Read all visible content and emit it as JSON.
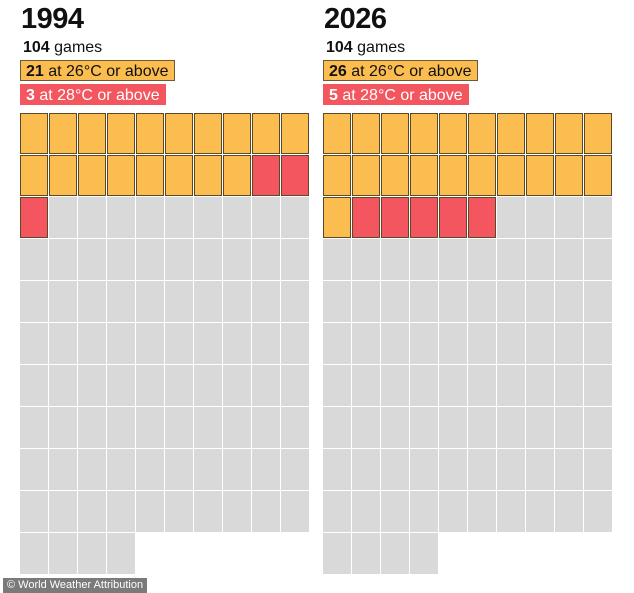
{
  "credit": "© World Weather Attribution",
  "colors": {
    "above_26": "#fbbd4f",
    "above_28": "#f4565f",
    "below_26": "#d9d9d9"
  },
  "panels": [
    {
      "year": "1994",
      "games_count": "104",
      "games_word": " games",
      "at26_count": "21",
      "at26_text": " at 26°C or above",
      "at28_count": "3",
      "at28_text": " at 28°C or above"
    },
    {
      "year": "2026",
      "games_count": "104",
      "games_word": " games",
      "at26_count": "26",
      "at26_text": " at 26°C or above",
      "at28_count": "5",
      "at28_text": " at 28°C or above"
    }
  ],
  "chart_data": [
    {
      "type": "waffle",
      "title": "1994",
      "total_games": 104,
      "columns": 10,
      "series": [
        {
          "name": "at 28°C or above",
          "value": 3
        },
        {
          "name": "at 26°C or above",
          "value": 21
        }
      ]
    },
    {
      "type": "waffle",
      "title": "2026",
      "total_games": 104,
      "columns": 10,
      "series": [
        {
          "name": "at 28°C or above",
          "value": 5
        },
        {
          "name": "at 26°C or above",
          "value": 26
        }
      ]
    }
  ]
}
